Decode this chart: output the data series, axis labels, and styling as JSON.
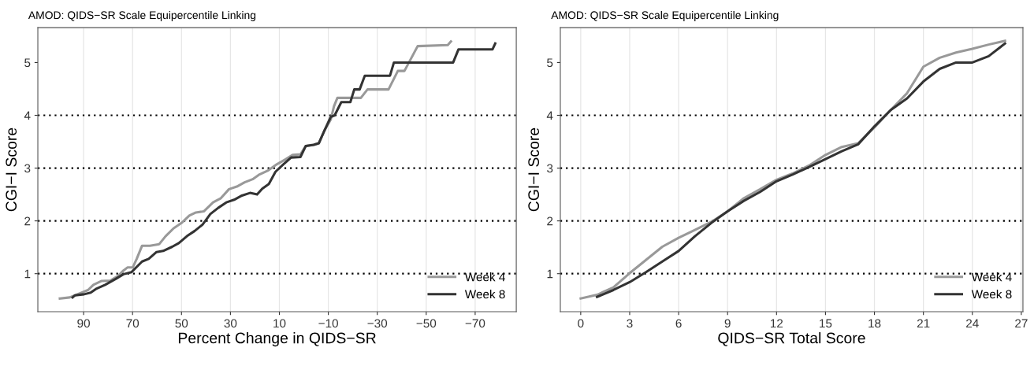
{
  "chart_data": [
    {
      "type": "line",
      "title": "AMOD: QIDS−SR Scale Equipercentile Linking",
      "xlabel": "Percent Change in QIDS−SR",
      "ylabel": "CGI−I Score",
      "xlim": [
        108.7,
        -86.8
      ],
      "xticks": [
        90,
        70,
        50,
        30,
        10,
        {
          "value": -10,
          "label": "−10"
        },
        {
          "value": -30,
          "label": "−30"
        },
        {
          "value": -50,
          "label": "−50"
        },
        {
          "value": -70,
          "label": "−70"
        }
      ],
      "ylim": [
        0.28,
        5.66
      ],
      "yticks": [
        1,
        2,
        3,
        4,
        5
      ],
      "grid": "x",
      "legend": "bottom right",
      "line_style": "solid",
      "ref_lines": [
        {
          "axis": "y",
          "value": 1,
          "color": "#000000",
          "line_style": "dotted"
        },
        {
          "axis": "y",
          "value": 2,
          "color": "#000000",
          "line_style": "dotted"
        },
        {
          "axis": "y",
          "value": 3,
          "color": "#000000",
          "line_style": "dotted"
        },
        {
          "axis": "y",
          "value": 4,
          "color": "#000000",
          "line_style": "dotted"
        }
      ],
      "series": [
        {
          "name": "Week 4",
          "color": "#999999",
          "x": [
            99.7,
            95.7,
            91.9,
            88.2,
            86,
            82.8,
            79,
            75.8,
            73.7,
            72,
            69.9,
            68.3,
            66.1,
            62.9,
            59.1,
            56.5,
            53.2,
            50,
            46.8,
            44.1,
            40.9,
            37.1,
            33.9,
            30.6,
            27.4,
            24.2,
            20.9,
            18.1,
            14.8,
            11.1,
            7.3,
            4.6,
            1.4,
            -0.8,
            -4,
            -6.1,
            -8.3,
            -11,
            -12.3,
            -13.7,
            -15.8,
            -23.3,
            -26,
            -34.6,
            -38.4,
            -41.1,
            -46.5,
            -58.8,
            -60.1
          ],
          "values": [
            0.53,
            0.55,
            0.62,
            0.69,
            0.79,
            0.86,
            0.87,
            0.96,
            1.06,
            1.12,
            1.12,
            1.28,
            1.53,
            1.53,
            1.56,
            1.71,
            1.86,
            1.96,
            2.1,
            2.16,
            2.18,
            2.35,
            2.43,
            2.6,
            2.65,
            2.73,
            2.79,
            2.88,
            2.95,
            3.07,
            3.17,
            3.25,
            3.26,
            3.42,
            3.44,
            3.47,
            3.7,
            3.92,
            4.17,
            4.33,
            4.33,
            4.33,
            4.49,
            4.49,
            4.84,
            4.84,
            5.31,
            5.33,
            5.4
          ]
        },
        {
          "name": "Week 8",
          "color": "#333333",
          "x": [
            94.5,
            93.5,
            89.8,
            87.1,
            85,
            81.2,
            76.9,
            73.7,
            70.4,
            66.1,
            63.4,
            60.2,
            57.5,
            53.8,
            51.1,
            47.8,
            44.6,
            41.4,
            38.2,
            34.9,
            31.7,
            28.5,
            25.3,
            22,
            19.1,
            17,
            14.3,
            11.6,
            8.4,
            5.2,
            1.4,
            -0.8,
            -4,
            -6.1,
            -8.3,
            -11,
            -12.6,
            -15.3,
            -19,
            -20.6,
            -22.8,
            -24.9,
            -35.2,
            -36.8,
            -61,
            -63.2,
            -77.1,
            -78.2
          ],
          "values": [
            0.55,
            0.59,
            0.61,
            0.64,
            0.71,
            0.79,
            0.9,
            0.99,
            1.03,
            1.23,
            1.28,
            1.41,
            1.43,
            1.51,
            1.58,
            1.71,
            1.81,
            1.93,
            2.13,
            2.25,
            2.35,
            2.4,
            2.48,
            2.53,
            2.5,
            2.61,
            2.7,
            2.93,
            3.07,
            3.2,
            3.21,
            3.42,
            3.44,
            3.47,
            3.7,
            3.97,
            4,
            4.25,
            4.25,
            4.49,
            4.49,
            4.75,
            4.75,
            5,
            5,
            5.25,
            5.25,
            5.36
          ]
        }
      ]
    },
    {
      "type": "line",
      "title": "AMOD: QIDS−SR Scale Equipercentile Linking",
      "xlabel": "QIDS−SR Total Score",
      "ylabel": "CGI−I Score",
      "xlim": [
        -1.25,
        27.1
      ],
      "xticks": [
        0,
        3,
        6,
        9,
        12,
        15,
        18,
        21,
        24,
        27
      ],
      "ylim": [
        0.28,
        5.66
      ],
      "yticks": [
        1,
        2,
        3,
        4,
        5
      ],
      "grid": "x",
      "legend": "bottom right",
      "line_style": "solid",
      "ref_lines": [
        {
          "axis": "y",
          "value": 1,
          "color": "#000000",
          "line_style": "dotted"
        },
        {
          "axis": "y",
          "value": 2,
          "color": "#000000",
          "line_style": "dotted"
        },
        {
          "axis": "y",
          "value": 3,
          "color": "#000000",
          "line_style": "dotted"
        },
        {
          "axis": "y",
          "value": 4,
          "color": "#000000",
          "line_style": "dotted"
        }
      ],
      "series": [
        {
          "name": "Week 4",
          "color": "#999999",
          "x": [
            0,
            1,
            2,
            3,
            4,
            5,
            6,
            7,
            8,
            9,
            10,
            11,
            12,
            13,
            14,
            15,
            16,
            17,
            18,
            19,
            20,
            21,
            22,
            23,
            24,
            25,
            26
          ],
          "values": [
            0.53,
            0.6,
            0.74,
            1.01,
            1.26,
            1.51,
            1.68,
            1.83,
            1.98,
            2.18,
            2.43,
            2.6,
            2.78,
            2.9,
            3.05,
            3.25,
            3.4,
            3.47,
            3.77,
            4.1,
            4.42,
            4.92,
            5.09,
            5.19,
            5.26,
            5.34,
            5.41
          ]
        },
        {
          "name": "Week 8",
          "color": "#333333",
          "x": [
            1,
            2,
            3,
            4,
            5,
            6,
            7,
            8,
            9,
            10,
            11,
            12,
            13,
            14,
            15,
            16,
            17,
            18,
            19,
            20,
            21,
            22,
            23,
            24,
            25,
            26
          ],
          "values": [
            0.56,
            0.69,
            0.84,
            1.03,
            1.23,
            1.43,
            1.71,
            1.96,
            2.18,
            2.38,
            2.55,
            2.75,
            2.88,
            3.02,
            3.17,
            3.32,
            3.45,
            3.79,
            4.1,
            4.32,
            4.64,
            4.88,
            5,
            5,
            5.12,
            5.36
          ]
        }
      ]
    }
  ]
}
